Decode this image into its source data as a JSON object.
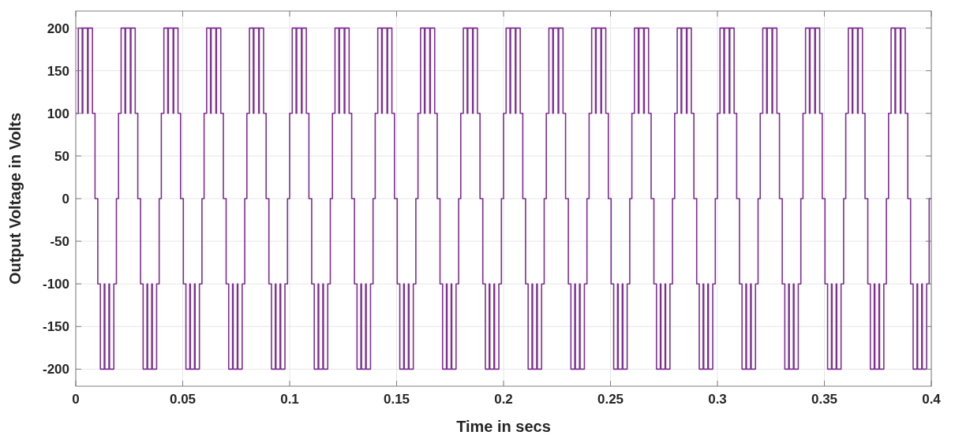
{
  "chart_data": {
    "type": "step",
    "xlabel": "Time in secs",
    "ylabel": "Output Voltage in Volts",
    "xlim": [
      0,
      0.4
    ],
    "ylim": [
      -220,
      220
    ],
    "xticks": [
      0,
      0.05,
      0.1,
      0.15,
      0.2,
      0.25,
      0.3,
      0.35,
      0.4
    ],
    "yticks": [
      -200,
      -150,
      -100,
      -50,
      0,
      50,
      100,
      150,
      200
    ],
    "grid": true,
    "x": [
      0,
      0.0012,
      0.003,
      0.0033,
      0.0055,
      0.0058,
      0.0078,
      0.009,
      0.0103,
      0.0115,
      0.0133,
      0.0136,
      0.0155,
      0.0158,
      0.0178,
      0.019,
      0.02,
      0.0212,
      0.023,
      0.0233,
      0.0255,
      0.0258,
      0.0278,
      0.029,
      0.0303,
      0.0315,
      0.0333,
      0.0336,
      0.0355,
      0.0358,
      0.0378,
      0.039,
      0.04,
      0.0412,
      0.043,
      0.0433,
      0.0455,
      0.0458,
      0.0478,
      0.049,
      0.0503,
      0.0515,
      0.0533,
      0.0536,
      0.0555,
      0.0558,
      0.0578,
      0.059,
      0.06,
      0.0612,
      0.063,
      0.0633,
      0.0655,
      0.0658,
      0.0678,
      0.069,
      0.0703,
      0.0715,
      0.0733,
      0.0736,
      0.0755,
      0.0758,
      0.0778,
      0.079,
      0.08,
      0.0812,
      0.083,
      0.0833,
      0.0855,
      0.0858,
      0.0878,
      0.089,
      0.0903,
      0.0915,
      0.0933,
      0.0936,
      0.0955,
      0.0958,
      0.0978,
      0.099,
      0.1,
      0.1012,
      0.103,
      0.1033,
      0.1055,
      0.1058,
      0.1078,
      0.109,
      0.1103,
      0.1115,
      0.1133,
      0.1136,
      0.1155,
      0.1158,
      0.1178,
      0.119,
      0.12,
      0.1212,
      0.123,
      0.1233,
      0.1255,
      0.1258,
      0.1278,
      0.129,
      0.1303,
      0.1315,
      0.1333,
      0.1336,
      0.1355,
      0.1358,
      0.1378,
      0.139,
      0.14,
      0.1412,
      0.143,
      0.1433,
      0.1455,
      0.1458,
      0.1478,
      0.149,
      0.1503,
      0.1515,
      0.1533,
      0.1536,
      0.1555,
      0.1558,
      0.1578,
      0.159,
      0.16,
      0.1612,
      0.163,
      0.1633,
      0.1655,
      0.1658,
      0.1678,
      0.169,
      0.1703,
      0.1715,
      0.1733,
      0.1736,
      0.1755,
      0.1758,
      0.1778,
      0.179,
      0.18,
      0.1812,
      0.183,
      0.1833,
      0.1855,
      0.1858,
      0.1878,
      0.189,
      0.1903,
      0.1915,
      0.1933,
      0.1936,
      0.1955,
      0.1958,
      0.1978,
      0.199,
      0.2,
      0.2012,
      0.203,
      0.2033,
      0.2055,
      0.2058,
      0.2078,
      0.209,
      0.2103,
      0.2115,
      0.2133,
      0.2136,
      0.2155,
      0.2158,
      0.2178,
      0.219,
      0.22,
      0.2212,
      0.223,
      0.2233,
      0.2255,
      0.2258,
      0.2278,
      0.229,
      0.2303,
      0.2315,
      0.2333,
      0.2336,
      0.2355,
      0.2358,
      0.2378,
      0.239,
      0.24,
      0.2412,
      0.243,
      0.2433,
      0.2455,
      0.2458,
      0.2478,
      0.249,
      0.2503,
      0.2515,
      0.2533,
      0.2536,
      0.2555,
      0.2558,
      0.2578,
      0.259,
      0.26,
      0.2612,
      0.263,
      0.2633,
      0.2655,
      0.2658,
      0.2678,
      0.269,
      0.2703,
      0.2715,
      0.2733,
      0.2736,
      0.2755,
      0.2758,
      0.2778,
      0.279,
      0.28,
      0.2812,
      0.283,
      0.2833,
      0.2855,
      0.2858,
      0.2878,
      0.289,
      0.2903,
      0.2915,
      0.2933,
      0.2936,
      0.2955,
      0.2958,
      0.2978,
      0.299,
      0.3,
      0.3012,
      0.303,
      0.3033,
      0.3055,
      0.3058,
      0.3078,
      0.309,
      0.3103,
      0.3115,
      0.3133,
      0.3136,
      0.3155,
      0.3158,
      0.3178,
      0.319,
      0.32,
      0.3212,
      0.323,
      0.3233,
      0.3255,
      0.3258,
      0.3278,
      0.329,
      0.3303,
      0.3315,
      0.3333,
      0.3336,
      0.3355,
      0.3358,
      0.3378,
      0.339,
      0.34,
      0.3412,
      0.343,
      0.3433,
      0.3455,
      0.3458,
      0.3478,
      0.349,
      0.3503,
      0.3515,
      0.3533,
      0.3536,
      0.3555,
      0.3558,
      0.3578,
      0.359,
      0.36,
      0.3612,
      0.363,
      0.3633,
      0.3655,
      0.3658,
      0.3678,
      0.369,
      0.3703,
      0.3715,
      0.3733,
      0.3736,
      0.3755,
      0.3758,
      0.3778,
      0.379,
      0.38,
      0.3812,
      0.383,
      0.3833,
      0.3855,
      0.3858,
      0.3878,
      0.389,
      0.3903,
      0.3915,
      0.3933,
      0.3936,
      0.3955,
      0.3958,
      0.3978,
      0.399,
      0.4
    ],
    "series": [
      {
        "color": "#7d2f91",
        "values": [
          100,
          200,
          100,
          200,
          100,
          200,
          100,
          0,
          -100,
          -200,
          -100,
          -200,
          -100,
          -200,
          -100,
          0,
          100,
          200,
          100,
          200,
          100,
          200,
          100,
          0,
          -100,
          -200,
          -100,
          -200,
          -100,
          -200,
          -100,
          0,
          100,
          200,
          100,
          200,
          100,
          200,
          100,
          0,
          -100,
          -200,
          -100,
          -200,
          -100,
          -200,
          -100,
          0,
          100,
          200,
          100,
          200,
          100,
          200,
          100,
          0,
          -100,
          -200,
          -100,
          -200,
          -100,
          -200,
          -100,
          0,
          100,
          200,
          100,
          200,
          100,
          200,
          100,
          0,
          -100,
          -200,
          -100,
          -200,
          -100,
          -200,
          -100,
          0,
          100,
          200,
          100,
          200,
          100,
          200,
          100,
          0,
          -100,
          -200,
          -100,
          -200,
          -100,
          -200,
          -100,
          0,
          100,
          200,
          100,
          200,
          100,
          200,
          100,
          0,
          -100,
          -200,
          -100,
          -200,
          -100,
          -200,
          -100,
          0,
          100,
          200,
          100,
          200,
          100,
          200,
          100,
          0,
          -100,
          -200,
          -100,
          -200,
          -100,
          -200,
          -100,
          0,
          100,
          200,
          100,
          200,
          100,
          200,
          100,
          0,
          -100,
          -200,
          -100,
          -200,
          -100,
          -200,
          -100,
          0,
          100,
          200,
          100,
          200,
          100,
          200,
          100,
          0,
          -100,
          -200,
          -100,
          -200,
          -100,
          -200,
          -100,
          0,
          100,
          200,
          100,
          200,
          100,
          200,
          100,
          0,
          -100,
          -200,
          -100,
          -200,
          -100,
          -200,
          -100,
          0,
          100,
          200,
          100,
          200,
          100,
          200,
          100,
          0,
          -100,
          -200,
          -100,
          -200,
          -100,
          -200,
          -100,
          0,
          100,
          200,
          100,
          200,
          100,
          200,
          100,
          0,
          -100,
          -200,
          -100,
          -200,
          -100,
          -200,
          -100,
          0,
          100,
          200,
          100,
          200,
          100,
          200,
          100,
          0,
          -100,
          -200,
          -100,
          -200,
          -100,
          -200,
          -100,
          0,
          100,
          200,
          100,
          200,
          100,
          200,
          100,
          0,
          -100,
          -200,
          -100,
          -200,
          -100,
          -200,
          -100,
          0,
          100,
          200,
          100,
          200,
          100,
          200,
          100,
          0,
          -100,
          -200,
          -100,
          -200,
          -100,
          -200,
          -100,
          0,
          100,
          200,
          100,
          200,
          100,
          200,
          100,
          0,
          -100,
          -200,
          -100,
          -200,
          -100,
          -200,
          -100,
          0,
          100,
          200,
          100,
          200,
          100,
          200,
          100,
          0,
          -100,
          -200,
          -100,
          -200,
          -100,
          -200,
          -100,
          0,
          100,
          200,
          100,
          200,
          100,
          200,
          100,
          0,
          -100,
          -200,
          -100,
          -200,
          -100,
          -200,
          -100,
          0,
          100,
          200,
          100,
          200,
          100,
          200,
          100,
          0,
          -100,
          -200,
          -100,
          -200,
          -100,
          -200,
          -100,
          0,
          0
        ]
      }
    ]
  }
}
